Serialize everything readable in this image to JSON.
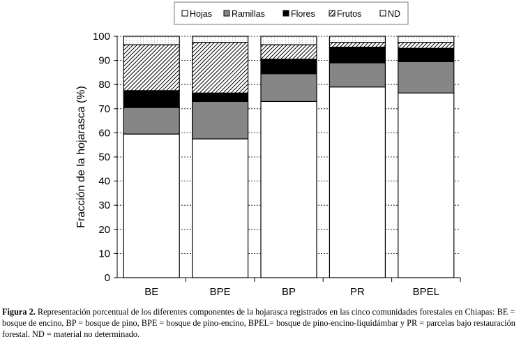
{
  "chart_data": {
    "type": "bar",
    "stacked": true,
    "categories": [
      "BE",
      "BPE",
      "BP",
      "PR",
      "BPEL"
    ],
    "series": [
      {
        "name": "Hojas",
        "values": [
          59.5,
          57.5,
          73,
          79,
          76.5
        ],
        "fill": "#ffffff"
      },
      {
        "name": "Ramillas",
        "values": [
          11,
          15.5,
          11.5,
          10,
          13
        ],
        "fill": "#868686"
      },
      {
        "name": "Flores",
        "values": [
          7,
          3.5,
          6,
          6.5,
          5.5
        ],
        "fill": "#000000"
      },
      {
        "name": "Frutos",
        "values": [
          19,
          21,
          6,
          2,
          2.5
        ],
        "fill": "hatch"
      },
      {
        "name": "ND",
        "values": [
          3.5,
          2.5,
          3.5,
          2.5,
          2.5
        ],
        "fill": "dots"
      }
    ],
    "title": "",
    "xlabel": "",
    "ylabel": "Fracción de la hojarasca (%)",
    "ylim": [
      0,
      100
    ],
    "yticks": [
      "0",
      "10",
      "20",
      "30",
      "40",
      "50",
      "60",
      "70",
      "80",
      "90",
      "100"
    ],
    "grid": true,
    "legend_position": "top"
  },
  "caption": {
    "label": "Figura 2.",
    "text": " Representación porcentual de los diferentes componentes de la hojarasca registrados en las cinco comunidades forestales en Chiapas: BE = bosque de encino, BP = bosque de pino, BPE = bosque de pino-encino, BPEL= bosque de pino-encino-liquidámbar y PR = parcelas bajo restauración forestal. ND = material no determinado."
  }
}
